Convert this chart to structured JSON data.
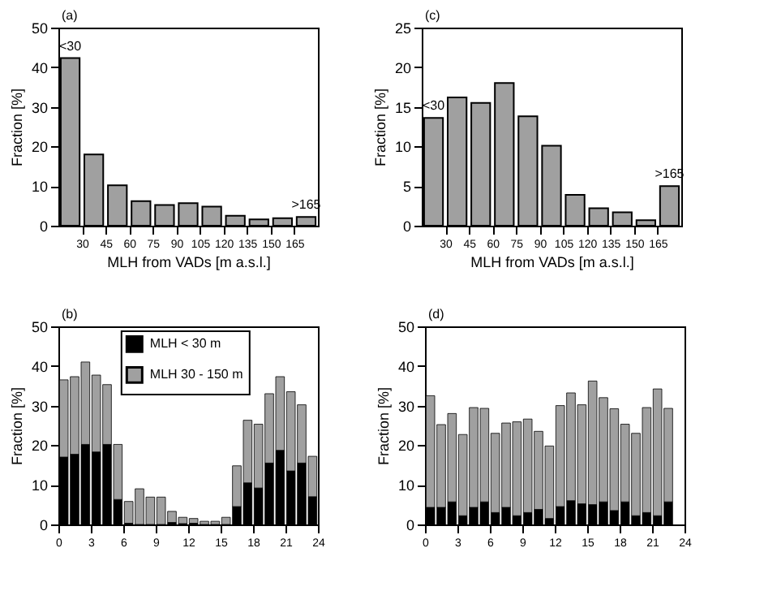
{
  "chart_data": [
    {
      "type": "histogram",
      "annotations": [
        "(a)"
      ],
      "value_labels": [
        "<30",
        null,
        null,
        null,
        null,
        null,
        null,
        null,
        null,
        null,
        ">165"
      ],
      "xlabel": "MLH from VADs [m a.s.l.]",
      "ylabel": "Fraction [%]",
      "bins": [
        15,
        30,
        45,
        60,
        75,
        90,
        105,
        120,
        135,
        150,
        165,
        180
      ],
      "values": [
        42.3,
        18,
        10.2,
        6.2,
        5.2,
        5.7,
        4.8,
        2.5,
        1.6,
        1.9,
        2.2
      ],
      "color": "#a0a0a0",
      "xlim": [
        15,
        180
      ],
      "xticks": [
        30,
        45,
        60,
        75,
        90,
        105,
        120,
        135,
        150,
        165
      ],
      "ylim": [
        0,
        50
      ],
      "yticks": [
        0,
        10,
        20,
        30,
        40,
        50
      ],
      "grid": false
    },
    {
      "type": "histogram",
      "annotations": [
        "(c)"
      ],
      "value_labels": [
        "<30",
        null,
        null,
        null,
        null,
        null,
        null,
        null,
        null,
        null,
        ">165"
      ],
      "xlabel": "MLH from VADs [m a.s.l.]",
      "ylabel": "Fraction [%]",
      "bins": [
        15,
        30,
        45,
        60,
        75,
        90,
        105,
        120,
        135,
        150,
        165,
        180
      ],
      "values": [
        13.6,
        16.2,
        15.5,
        18,
        13.8,
        10.1,
        3.9,
        2.2,
        1.7,
        0.7,
        5.0
      ],
      "color": "#a0a0a0",
      "xlim": [
        15,
        180
      ],
      "xticks": [
        30,
        45,
        60,
        75,
        90,
        105,
        120,
        135,
        150,
        165
      ],
      "ylim": [
        0,
        25
      ],
      "yticks": [
        0,
        5,
        10,
        15,
        20,
        25
      ],
      "grid": false
    },
    {
      "type": "bar",
      "stacked": true,
      "annotations": [
        "(b)"
      ],
      "ylabel": "Fraction [%]",
      "x": [
        0.5,
        1.5,
        2.5,
        3.5,
        4.5,
        5.5,
        6.5,
        7.5,
        8.5,
        9.5,
        10.5,
        11.5,
        12.5,
        13.5,
        14.5,
        15.5,
        16.5,
        17.5,
        18.5,
        19.5,
        20.5,
        21.5,
        22.5,
        23.5
      ],
      "series": [
        {
          "name": "MLH < 30 m",
          "color": "#000000",
          "values": [
            17,
            17.7,
            20.2,
            18.3,
            20.2,
            6.3,
            0.3,
            0,
            0,
            0,
            0.5,
            0.2,
            0.3,
            0,
            0,
            0,
            4.5,
            10.5,
            9.2,
            15.5,
            18.7,
            13.5,
            15.5,
            7
          ]
        },
        {
          "name": "MLH 30 - 150 m",
          "color": "#a0a0a0",
          "values": [
            19.5,
            19.6,
            20.8,
            19.4,
            15.1,
            13.9,
            5.5,
            9,
            6.9,
            6.9,
            2.8,
            1.6,
            1.2,
            0.8,
            0.8,
            1.8,
            10.3,
            15.8,
            16.1,
            17.5,
            18.6,
            20,
            14.7,
            10.2
          ]
        }
      ],
      "legend": "top",
      "xlim": [
        0,
        24
      ],
      "xticks": [
        0,
        3,
        6,
        9,
        12,
        15,
        18,
        21,
        24
      ],
      "ylim": [
        0,
        50
      ],
      "yticks": [
        0,
        10,
        20,
        30,
        40,
        50
      ],
      "grid": false
    },
    {
      "type": "bar",
      "stacked": true,
      "annotations": [
        "(d)"
      ],
      "ylabel": "Fraction [%]",
      "x": [
        0.5,
        1.5,
        2.5,
        3.5,
        4.5,
        5.5,
        6.5,
        7.5,
        8.5,
        9.5,
        10.5,
        11.5,
        12.5,
        13.5,
        14.5,
        15.5,
        16.5,
        17.5,
        18.5,
        19.5,
        20.5,
        21.5,
        22.5
      ],
      "series": [
        {
          "color": "#000000",
          "values": [
            4.3,
            4.3,
            5.7,
            2.2,
            4.3,
            5.7,
            3,
            4.3,
            2.2,
            3,
            3.8,
            1.5,
            4.5,
            6,
            5.2,
            5,
            5.7,
            3.5,
            5.7,
            2.2,
            3,
            2.2,
            5.7
          ]
        },
        {
          "color": "#a0a0a0",
          "values": [
            28.2,
            20.9,
            22.3,
            20.5,
            25.2,
            23.6,
            20,
            21.3,
            23.7,
            23.6,
            19.7,
            18.3,
            25.5,
            27.2,
            25,
            31.2,
            26.3,
            25.7,
            19.6,
            20.8,
            26.5,
            32,
            23.6
          ]
        }
      ],
      "legend": false,
      "xlim": [
        0,
        24
      ],
      "xticks": [
        0,
        3,
        6,
        9,
        12,
        15,
        18,
        21,
        24
      ],
      "ylim": [
        0,
        50
      ],
      "yticks": [
        0,
        10,
        20,
        30,
        40,
        50
      ],
      "grid": false
    }
  ]
}
